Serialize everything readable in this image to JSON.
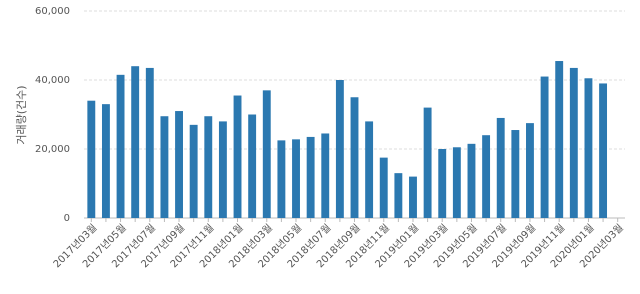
{
  "chart_data": {
    "type": "bar",
    "y_label": "거래량(건수)",
    "categories": [
      "2017년03월",
      null,
      "2017년05월",
      null,
      "2017년07월",
      null,
      "2017년09월",
      null,
      "2017년11월",
      null,
      "2018년01월",
      null,
      "2018년03월",
      null,
      "2018년05월",
      null,
      "2018년07월",
      null,
      "2018년09월",
      null,
      "2018년11월",
      null,
      "2019년01월",
      null,
      "2019년03월",
      null,
      "2019년05월",
      null,
      "2019년07월",
      null,
      "2019년09월",
      null,
      "2019년11월",
      null,
      "2020년01월",
      null,
      "2020년03월"
    ],
    "values": [
      34000,
      33000,
      41500,
      44000,
      43500,
      29500,
      31000,
      27000,
      29500,
      28000,
      35500,
      30000,
      37000,
      22500,
      22800,
      23500,
      24500,
      40000,
      35000,
      28000,
      17500,
      13000,
      12000,
      32000,
      20000,
      20500,
      21500,
      24000,
      29000,
      25500,
      27500,
      41000,
      45500,
      43500,
      40500,
      39000,
      null
    ],
    "color": "#2b78b0",
    "ylim": [
      0,
      60000
    ],
    "yticks": [
      0,
      {
        "value": 20000,
        "label": "20,000"
      },
      {
        "value": 40000,
        "label": "40,000"
      },
      {
        "value": 60000,
        "label": "60,000"
      }
    ],
    "grid": true
  }
}
